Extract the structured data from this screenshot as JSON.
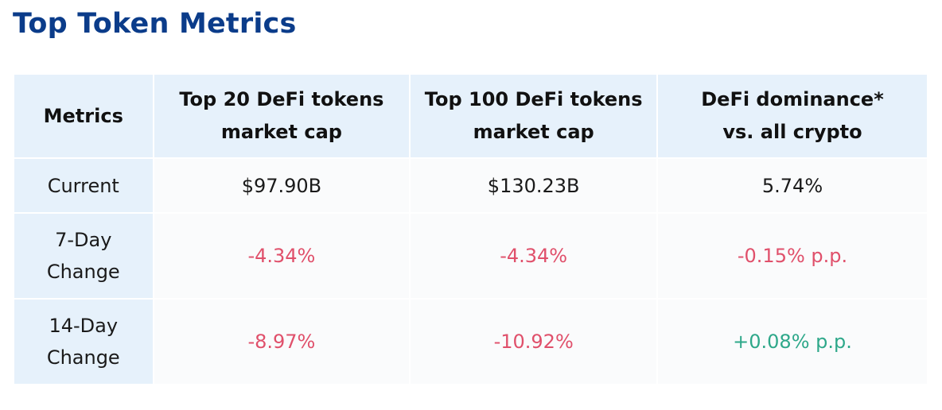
{
  "title": "Top Token Metrics",
  "table": {
    "headers": [
      {
        "line1": "Metrics",
        "line2": ""
      },
      {
        "line1": "Top 20 DeFi tokens",
        "line2": "market cap"
      },
      {
        "line1": "Top 100 DeFi tokens",
        "line2": "market cap"
      },
      {
        "line1": "DeFi dominance*",
        "line2": "vs. all crypto"
      }
    ],
    "rows": [
      {
        "label_line1": "Current",
        "label_line2": "",
        "values": [
          "$97.90B",
          "$130.23B",
          "5.74%"
        ],
        "value_colors": [
          "#1a1a1a",
          "#1a1a1a",
          "#1a1a1a"
        ]
      },
      {
        "label_line1": "7-Day",
        "label_line2": "Change",
        "values": [
          "-4.34%",
          "-4.34%",
          "-0.15% p.p."
        ],
        "value_colors": [
          "#e0506b",
          "#e0506b",
          "#e0506b"
        ]
      },
      {
        "label_line1": "14-Day",
        "label_line2": "Change",
        "values": [
          "-8.97%",
          "-10.92%",
          "+0.08% p.p."
        ],
        "value_colors": [
          "#e0506b",
          "#e0506b",
          "#2ea88a"
        ]
      }
    ]
  },
  "colors": {
    "title": "#0b3c8a",
    "header_bg": "#e6f1fb",
    "cell_bg": "#fafbfc",
    "negative": "#e0506b",
    "positive": "#2ea88a"
  }
}
